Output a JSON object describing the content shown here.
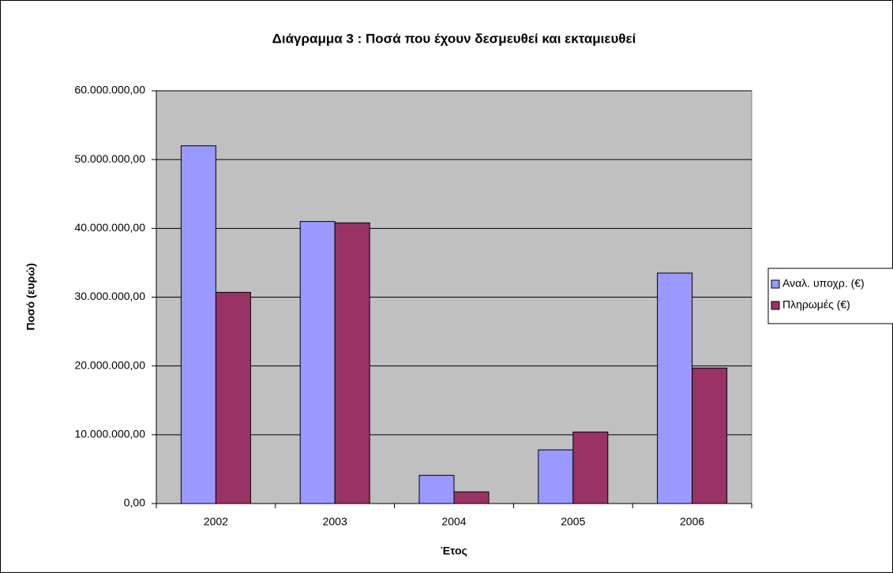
{
  "chart_data": {
    "type": "bar",
    "title": "Διάγραμμα 3 : Ποσά που έχουν δεσμευθεί και εκταμιευθεί",
    "x_label": "Έτος",
    "y_label": "Ποσό (ευρώ)",
    "categories": [
      "2002",
      "2003",
      "2004",
      "2005",
      "2006"
    ],
    "series": [
      {
        "name": "Αναλ. υποχρ. (€)",
        "color": "#9999ff",
        "values": [
          52000000,
          41000000,
          4100000,
          7800000,
          33500000
        ]
      },
      {
        "name": "Πληρωμές (€)",
        "color": "#993366",
        "values": [
          30700000,
          40800000,
          1700000,
          10400000,
          19700000
        ]
      }
    ],
    "ylim": [
      0,
      60000000
    ],
    "yticks": [
      {
        "value": 0,
        "label": "0,00"
      },
      {
        "value": 10000000,
        "label": "10.000.000,00"
      },
      {
        "value": 20000000,
        "label": "20.000.000,00"
      },
      {
        "value": 30000000,
        "label": "30.000.000,00"
      },
      {
        "value": 40000000,
        "label": "40.000.000,00"
      },
      {
        "value": 50000000,
        "label": "50.000.000,00"
      },
      {
        "value": 60000000,
        "label": "60.000.000,00"
      }
    ],
    "grid": true,
    "legend": "right",
    "plot_background": "#c0c0c0"
  }
}
